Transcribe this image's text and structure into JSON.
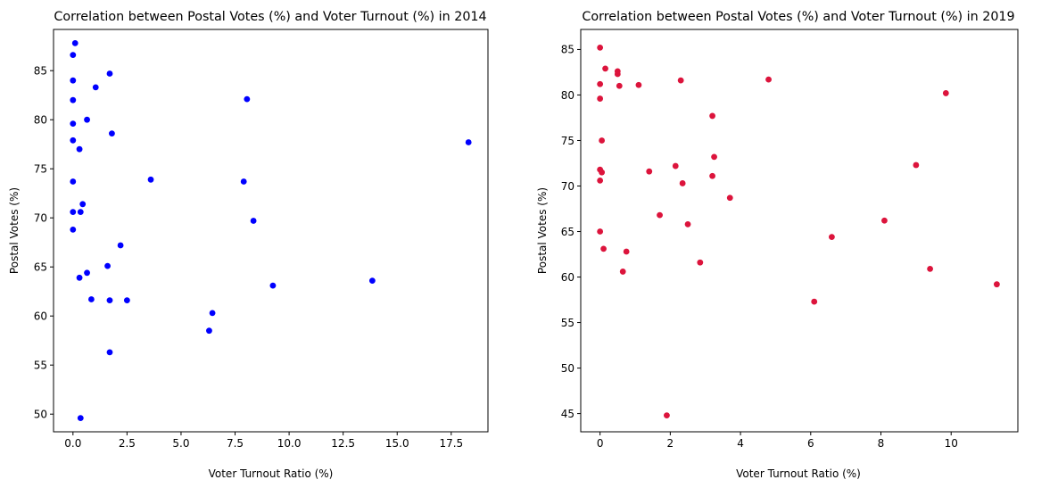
{
  "chart_data": [
    {
      "type": "scatter",
      "title": "Correlation between Postal Votes (%) and Voter Turnout (%) in 2014",
      "xlabel": "Voter Turnout Ratio (%)",
      "ylabel": "Postal Votes (%)",
      "xlim": [
        -0.9,
        19.2
      ],
      "ylim": [
        48.2,
        89.2
      ],
      "xticks": [
        0.0,
        2.5,
        5.0,
        7.5,
        10.0,
        12.5,
        15.0,
        17.5
      ],
      "xtick_labels": [
        "0.0",
        "2.5",
        "5.0",
        "7.5",
        "10.0",
        "12.5",
        "15.0",
        "17.5"
      ],
      "yticks": [
        50,
        55,
        60,
        65,
        70,
        75,
        80,
        85
      ],
      "ytick_labels": [
        "50",
        "55",
        "60",
        "65",
        "70",
        "75",
        "80",
        "85"
      ],
      "color": "#0000ff",
      "grid": false,
      "series": [
        {
          "points": [
            [
              0.1,
              87.8
            ],
            [
              0.0,
              86.6
            ],
            [
              0.0,
              84.0
            ],
            [
              0.0,
              82.0
            ],
            [
              0.0,
              79.6
            ],
            [
              0.0,
              77.9
            ],
            [
              0.0,
              73.7
            ],
            [
              0.0,
              70.6
            ],
            [
              0.0,
              68.8
            ],
            [
              0.3,
              77.0
            ],
            [
              0.35,
              70.6
            ],
            [
              0.45,
              71.4
            ],
            [
              0.3,
              63.9
            ],
            [
              0.35,
              49.6
            ],
            [
              0.65,
              80.0
            ],
            [
              0.65,
              64.4
            ],
            [
              0.85,
              61.7
            ],
            [
              1.05,
              83.3
            ],
            [
              1.7,
              84.7
            ],
            [
              1.8,
              78.6
            ],
            [
              1.6,
              65.1
            ],
            [
              1.7,
              61.6
            ],
            [
              1.7,
              56.3
            ],
            [
              2.2,
              67.2
            ],
            [
              2.5,
              61.6
            ],
            [
              3.6,
              73.9
            ],
            [
              6.3,
              58.5
            ],
            [
              6.45,
              60.3
            ],
            [
              7.9,
              73.7
            ],
            [
              8.05,
              82.1
            ],
            [
              8.35,
              69.7
            ],
            [
              9.25,
              63.1
            ],
            [
              13.85,
              63.6
            ],
            [
              18.3,
              77.7
            ]
          ]
        }
      ]
    },
    {
      "type": "scatter",
      "title": "Correlation between Postal Votes (%) and Voter Turnout (%) in 2019",
      "xlabel": "Voter Turnout Ratio (%)",
      "ylabel": "Postal Votes (%)",
      "xlim": [
        -0.55,
        11.9
      ],
      "ylim": [
        43.0,
        87.2
      ],
      "xticks": [
        0,
        2,
        4,
        6,
        8,
        10
      ],
      "xtick_labels": [
        "0",
        "2",
        "4",
        "6",
        "8",
        "10"
      ],
      "yticks": [
        45,
        50,
        55,
        60,
        65,
        70,
        75,
        80,
        85
      ],
      "ytick_labels": [
        "45",
        "50",
        "55",
        "60",
        "65",
        "70",
        "75",
        "80",
        "85"
      ],
      "color": "#dc143c",
      "grid": false,
      "series": [
        {
          "points": [
            [
              0.0,
              85.2
            ],
            [
              0.0,
              81.2
            ],
            [
              0.0,
              79.6
            ],
            [
              0.15,
              82.9
            ],
            [
              0.05,
              75.0
            ],
            [
              0.0,
              71.8
            ],
            [
              0.05,
              71.5
            ],
            [
              0.0,
              70.6
            ],
            [
              0.0,
              65.0
            ],
            [
              0.1,
              63.1
            ],
            [
              0.5,
              82.6
            ],
            [
              0.5,
              82.3
            ],
            [
              0.55,
              81.0
            ],
            [
              0.65,
              60.6
            ],
            [
              0.75,
              62.8
            ],
            [
              1.1,
              81.1
            ],
            [
              1.4,
              71.6
            ],
            [
              1.7,
              66.8
            ],
            [
              1.9,
              44.8
            ],
            [
              2.15,
              72.2
            ],
            [
              2.3,
              81.6
            ],
            [
              2.35,
              70.3
            ],
            [
              2.5,
              65.8
            ],
            [
              2.85,
              61.6
            ],
            [
              3.2,
              77.7
            ],
            [
              3.25,
              73.2
            ],
            [
              3.2,
              71.1
            ],
            [
              3.7,
              68.7
            ],
            [
              4.8,
              81.7
            ],
            [
              6.1,
              57.3
            ],
            [
              6.6,
              64.4
            ],
            [
              8.1,
              66.2
            ],
            [
              9.0,
              72.3
            ],
            [
              9.4,
              60.9
            ],
            [
              9.85,
              80.2
            ],
            [
              11.3,
              59.2
            ]
          ]
        }
      ]
    }
  ]
}
